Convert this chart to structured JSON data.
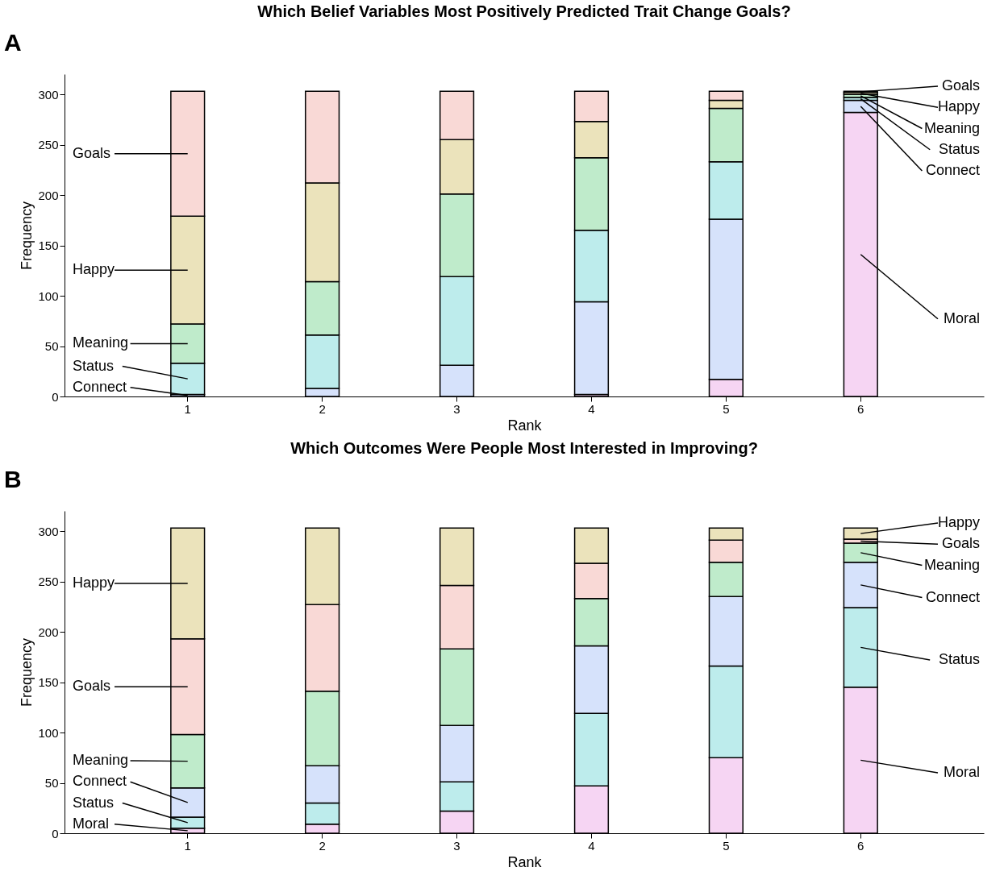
{
  "chart_data": [
    {
      "type": "bar",
      "stacked": true,
      "title": "Which Belief Variables Most Positively Predicted Trait Change Goals?",
      "xlabel": "Rank",
      "ylabel": "Frequency",
      "annotations": [
        "A"
      ],
      "categories": [
        "1",
        "2",
        "3",
        "4",
        "5",
        "6"
      ],
      "ylim": [
        0,
        320
      ],
      "yticks": [
        0,
        50,
        100,
        150,
        200,
        250,
        300
      ],
      "grid": false,
      "legend": "left",
      "series": [
        {
          "name": "Moral",
          "color": "#f6d5f3",
          "values": [
            0,
            0,
            0,
            2,
            17,
            282
          ]
        },
        {
          "name": "Connect",
          "color": "#d6e2fb",
          "values": [
            2,
            8,
            31,
            92,
            159,
            12
          ]
        },
        {
          "name": "Status",
          "color": "#bdecec",
          "values": [
            31,
            53,
            88,
            71,
            57,
            3
          ]
        },
        {
          "name": "Meaning",
          "color": "#bfebcb",
          "values": [
            39,
            53,
            82,
            72,
            53,
            3
          ]
        },
        {
          "name": "Happy",
          "color": "#ebe3bb",
          "values": [
            107,
            98,
            54,
            36,
            8,
            2
          ]
        },
        {
          "name": "Goals",
          "color": "#f9d9d6",
          "values": [
            124,
            91,
            48,
            30,
            9,
            1
          ]
        }
      ]
    },
    {
      "type": "bar",
      "stacked": true,
      "title": "Which Outcomes Were People Most Interested in Improving?",
      "xlabel": "Rank",
      "ylabel": "Frequency",
      "annotations": [
        "B"
      ],
      "categories": [
        "1",
        "2",
        "3",
        "4",
        "5",
        "6"
      ],
      "ylim": [
        0,
        320
      ],
      "yticks": [
        0,
        50,
        100,
        150,
        200,
        250,
        300
      ],
      "grid": false,
      "legend": "right",
      "series": [
        {
          "name": "Moral",
          "color": "#f6d5f3",
          "values": [
            5,
            9,
            22,
            47,
            75,
            145
          ]
        },
        {
          "name": "Status",
          "color": "#bdecec",
          "values": [
            11,
            21,
            29,
            72,
            91,
            79
          ]
        },
        {
          "name": "Connect",
          "color": "#d6e2fb",
          "values": [
            29,
            37,
            56,
            67,
            69,
            45
          ]
        },
        {
          "name": "Meaning",
          "color": "#bfebcb",
          "values": [
            53,
            74,
            76,
            47,
            34,
            19
          ]
        },
        {
          "name": "Goals",
          "color": "#f9d9d6",
          "values": [
            95,
            86,
            63,
            35,
            22,
            4
          ]
        },
        {
          "name": "Happy",
          "color": "#ebe3bb",
          "values": [
            110,
            76,
            57,
            35,
            12,
            11
          ]
        }
      ]
    }
  ]
}
